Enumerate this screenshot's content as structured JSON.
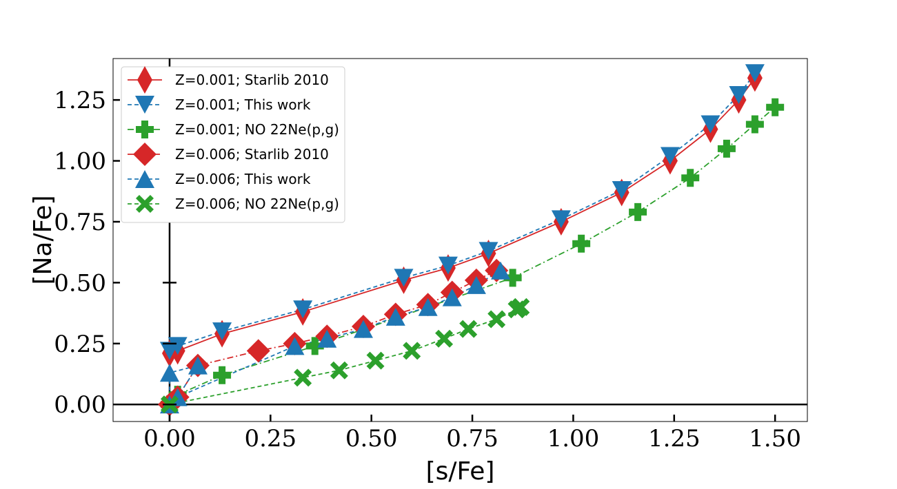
{
  "chart_data": {
    "type": "line",
    "xlabel": "[s/Fe]",
    "ylabel": "[Na/Fe]",
    "xlim": [
      -0.14,
      1.58
    ],
    "ylim": [
      -0.07,
      1.42
    ],
    "xticks": [
      0.0,
      0.25,
      0.5,
      0.75,
      1.0,
      1.25,
      1.5
    ],
    "xtick_labels": [
      "0.00",
      "0.25",
      "0.50",
      "0.75",
      "1.00",
      "1.25",
      "1.50"
    ],
    "yticks": [
      0.0,
      0.25,
      0.5,
      0.75,
      1.0,
      1.25
    ],
    "ytick_labels": [
      "0.00",
      "0.25",
      "0.50",
      "0.75",
      "1.00",
      "1.25"
    ],
    "grid": false,
    "reference_lines": {
      "x": 0,
      "y": 0
    },
    "legend_position": "upper-left",
    "series": [
      {
        "name": "Z=0.001; Starlib 2010",
        "color": "#d62728",
        "marker": "thin-diamond",
        "linestyle": "solid",
        "x": [
          0.0,
          0.02,
          0.13,
          0.33,
          0.58,
          0.69,
          0.79,
          0.97,
          1.12,
          1.24,
          1.34,
          1.41,
          1.45
        ],
        "y": [
          0.21,
          0.22,
          0.29,
          0.38,
          0.51,
          0.56,
          0.62,
          0.75,
          0.87,
          1.0,
          1.13,
          1.25,
          1.34
        ]
      },
      {
        "name": "Z=0.001; This work",
        "color": "#1f77b4",
        "marker": "triangle-down",
        "linestyle": "dashed",
        "x": [
          0.0,
          0.02,
          0.13,
          0.33,
          0.58,
          0.69,
          0.79,
          0.97,
          1.12,
          1.24,
          1.34,
          1.41,
          1.45
        ],
        "y": [
          0.22,
          0.24,
          0.3,
          0.39,
          0.52,
          0.57,
          0.63,
          0.76,
          0.88,
          1.02,
          1.15,
          1.27,
          1.36
        ]
      },
      {
        "name": "Z=0.001; NO 22Ne(p,g)",
        "color": "#2ca02c",
        "marker": "plus",
        "linestyle": "dashdot",
        "x": [
          0.0,
          0.02,
          0.13,
          0.36,
          0.85,
          1.02,
          1.16,
          1.29,
          1.38,
          1.45,
          1.5
        ],
        "y": [
          0.0,
          0.04,
          0.12,
          0.24,
          0.52,
          0.66,
          0.79,
          0.93,
          1.05,
          1.15,
          1.22
        ]
      },
      {
        "name": "Z=0.006; Starlib 2010",
        "color": "#d62728",
        "marker": "diamond",
        "linestyle": "dashdot",
        "x": [
          0.0,
          0.02,
          0.07,
          0.22,
          0.31,
          0.39,
          0.48,
          0.56,
          0.64,
          0.7,
          0.76,
          0.81
        ],
        "y": [
          0.0,
          0.03,
          0.16,
          0.22,
          0.25,
          0.28,
          0.32,
          0.37,
          0.41,
          0.46,
          0.51,
          0.55
        ]
      },
      {
        "name": "Z=0.006; This work",
        "color": "#1f77b4",
        "marker": "triangle-up",
        "linestyle": "dashed",
        "x": [
          0.0,
          0.0,
          0.07,
          0.02,
          0.31,
          0.39,
          0.48,
          0.56,
          0.64,
          0.7,
          0.76,
          0.82
        ],
        "y": [
          0.0,
          0.13,
          0.16,
          0.03,
          0.24,
          0.27,
          0.31,
          0.36,
          0.4,
          0.44,
          0.49,
          0.55
        ]
      },
      {
        "name": "Z=0.006; NO 22Ne(p,g)",
        "color": "#2ca02c",
        "marker": "x",
        "linestyle": "dashed",
        "x": [
          0.0,
          0.33,
          0.42,
          0.51,
          0.6,
          0.68,
          0.74,
          0.81,
          0.86,
          0.87
        ],
        "y": [
          0.0,
          0.11,
          0.14,
          0.18,
          0.22,
          0.27,
          0.31,
          0.35,
          0.39,
          0.4
        ]
      }
    ]
  }
}
